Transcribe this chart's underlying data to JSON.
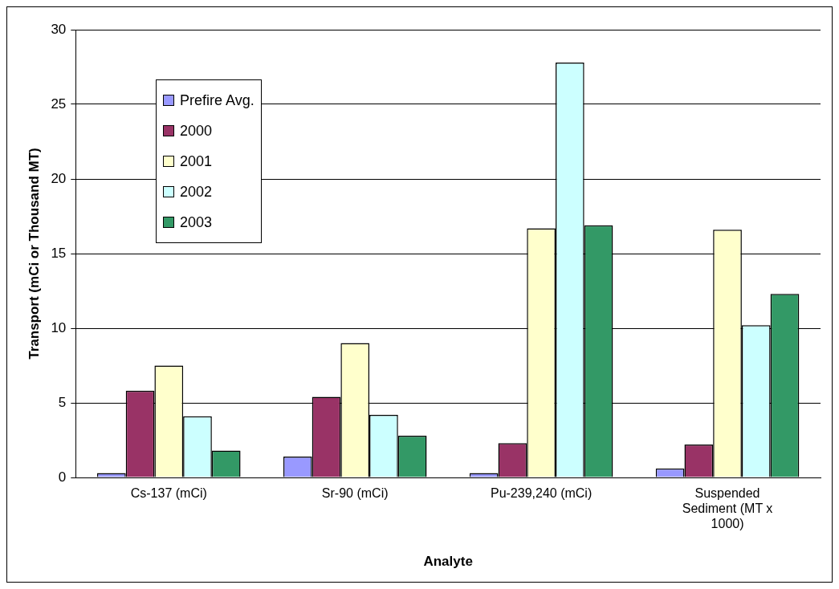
{
  "chart_data": {
    "type": "bar",
    "xlabel": "Analyte",
    "ylabel": "Transport (mCi or Thousand MT)",
    "categories": [
      "Cs-137 (mCi)",
      "Sr-90 (mCi)",
      "Pu-239,240 (mCi)",
      "Suspended Sediment (MT x 1000)"
    ],
    "series": [
      {
        "name": "Prefire Avg.",
        "color": "#9999ff",
        "values": [
          0.3,
          1.4,
          0.3,
          0.6
        ]
      },
      {
        "name": "2000",
        "color": "#993366",
        "values": [
          5.8,
          5.4,
          2.3,
          2.2
        ]
      },
      {
        "name": "2001",
        "color": "#ffffcc",
        "values": [
          7.5,
          9.0,
          16.7,
          16.6
        ]
      },
      {
        "name": "2002",
        "color": "#ccffff",
        "values": [
          4.1,
          4.2,
          27.8,
          10.2
        ]
      },
      {
        "name": "2003",
        "color": "#339966",
        "values": [
          1.8,
          2.8,
          16.9,
          12.3
        ]
      }
    ],
    "ylim": [
      0,
      30
    ],
    "yticks": [
      0,
      5,
      10,
      15,
      20,
      25,
      30
    ],
    "grid": "y",
    "legend": "top left"
  }
}
